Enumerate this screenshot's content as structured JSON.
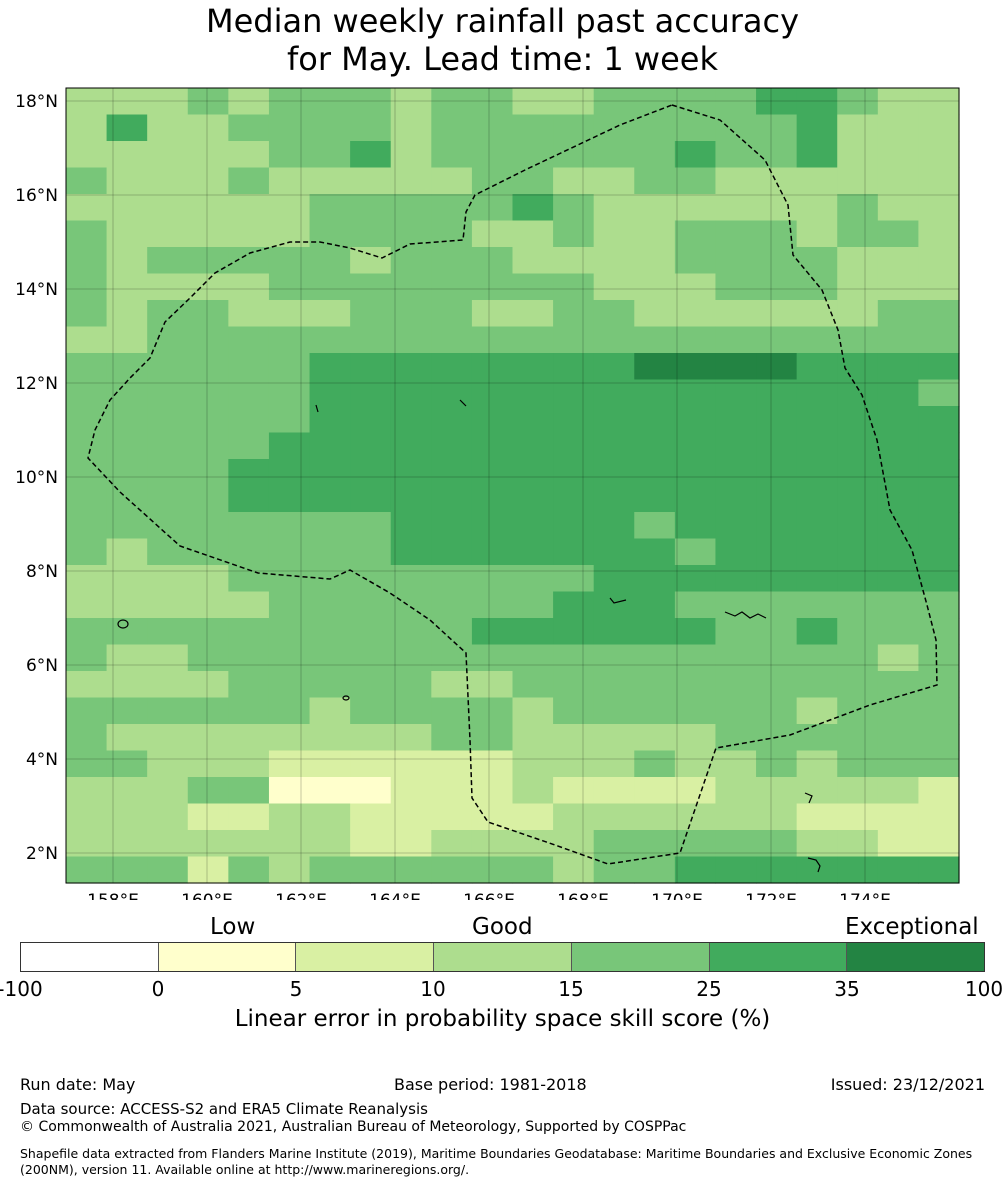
{
  "title_line1": "Median weekly rainfall past accuracy",
  "title_line2": "for May. Lead time: 1 week",
  "map": {
    "lon_ticks": [
      "158°E",
      "160°E",
      "162°E",
      "164°E",
      "166°E",
      "168°E",
      "170°E",
      "172°E",
      "174°E"
    ],
    "lat_ticks": [
      "18°N",
      "16°N",
      "14°N",
      "12°N",
      "10°N",
      "8°N",
      "6°N",
      "4°N",
      "2°N"
    ],
    "grid_rows": [
      "3334344434433444455433",
      "3533444434444444445333",
      "3333344534444445445333",
      "4333433333443344333333",
      "3333334444454333333433",
      "4333334444334334443443",
      "4344444344433334444333",
      "4333344444444333444333",
      "4344333444334433333344",
      "3344444444444444444444",
      "4444445555555566665555",
      "4444445555555555555554",
      "4444445555555555555555",
      "4444455555555555555555",
      "4444555555555555555555",
      "4444555555555555555555",
      "4444444455555545555555",
      "4344444455555554555555",
      "3333444444444555555555",
      "3333344444445554444444",
      "4444444444555555445444",
      "4334444444444444444434",
      "3333444443344444444444",
      "4444443444434444443444",
      "4333333334433333444444",
      "4433322222233343343444",
      "3334411122232222333332",
      "3332233222223333332222",
      "3333333223333444443322",
      "4442434444443445555555"
    ],
    "color_keys": {
      "1": "#ffffcc",
      "2": "#d9f0a3",
      "3": "#addd8e",
      "4": "#78c679",
      "5": "#41ab5d",
      "6": "#238443"
    }
  },
  "colorbar": {
    "category_labels": [
      "Low",
      "Good",
      "Exceptional"
    ],
    "tick_labels": [
      "-100",
      "0",
      "5",
      "10",
      "15",
      "25",
      "35",
      "100"
    ],
    "colors": [
      "#ffffff",
      "#ffffcc",
      "#d9f0a3",
      "#addd8e",
      "#78c679",
      "#41ab5d",
      "#238443"
    ],
    "axis_label": "Linear error in probability space skill score (%)"
  },
  "footer": {
    "run_date": "Run date: May",
    "base_period": "Base period: 1981-2018",
    "issued": "Issued: 23/12/2021",
    "data_source": "Data source: ACCESS-S2 and ERA5 Climate Reanalysis",
    "copyright": "© Commonwealth of Australia 2021, Australian Bureau of Meteorology, Supported by COSPPac",
    "shapefile": "Shapefile data extracted from Flanders Marine Institute (2019), Maritime Boundaries Geodatabase: Maritime Boundaries and Exclusive Economic Zones (200NM), version 11. Available online at http://www.marineregions.org/."
  }
}
